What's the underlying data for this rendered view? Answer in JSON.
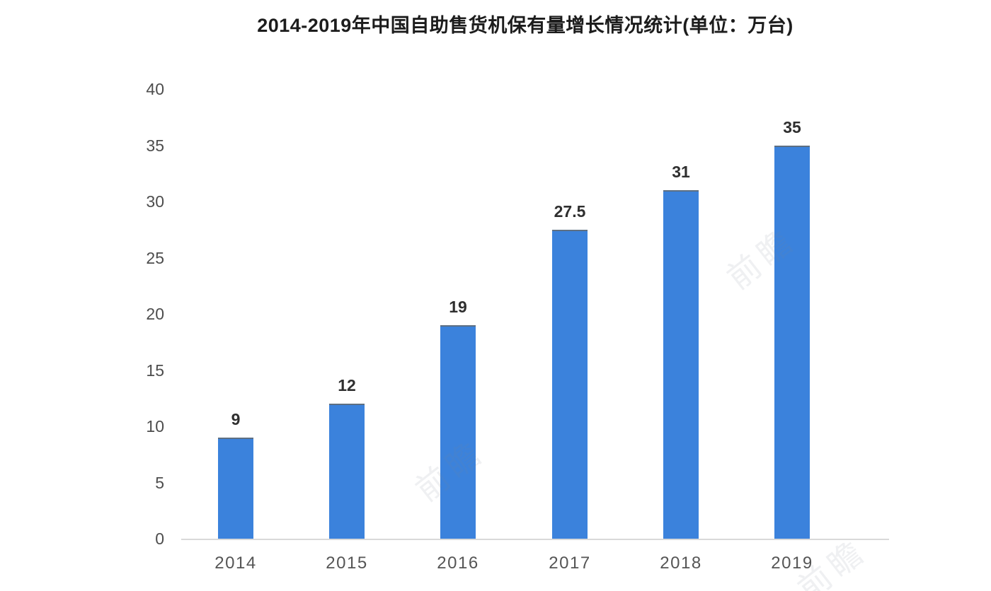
{
  "chart_data": {
    "type": "bar",
    "title": "2014-2019年中国自助售货机保有量增长情况统计(单位：万台)",
    "unit": "万台",
    "categories": [
      "2014",
      "2015",
      "2016",
      "2017",
      "2018",
      "2019"
    ],
    "values": [
      9,
      12,
      19,
      27.5,
      31,
      35
    ],
    "value_labels": [
      "9",
      "12",
      "19",
      "27.5",
      "31",
      "35"
    ],
    "ylim": [
      0,
      40
    ],
    "yticks": [
      0,
      5,
      10,
      15,
      20,
      25,
      30,
      35,
      40
    ],
    "grid": false,
    "legend_position": "none",
    "bar_color": "#3b82dc",
    "bar_top_edge_color": "#5d6f83",
    "axis_line_color": "#d9d9d9",
    "title_color": "#1c1c1c",
    "tick_label_color": "#4d4d4d",
    "value_label_color": "#2f2f2f"
  },
  "watermark": {
    "text": "前瞻"
  }
}
